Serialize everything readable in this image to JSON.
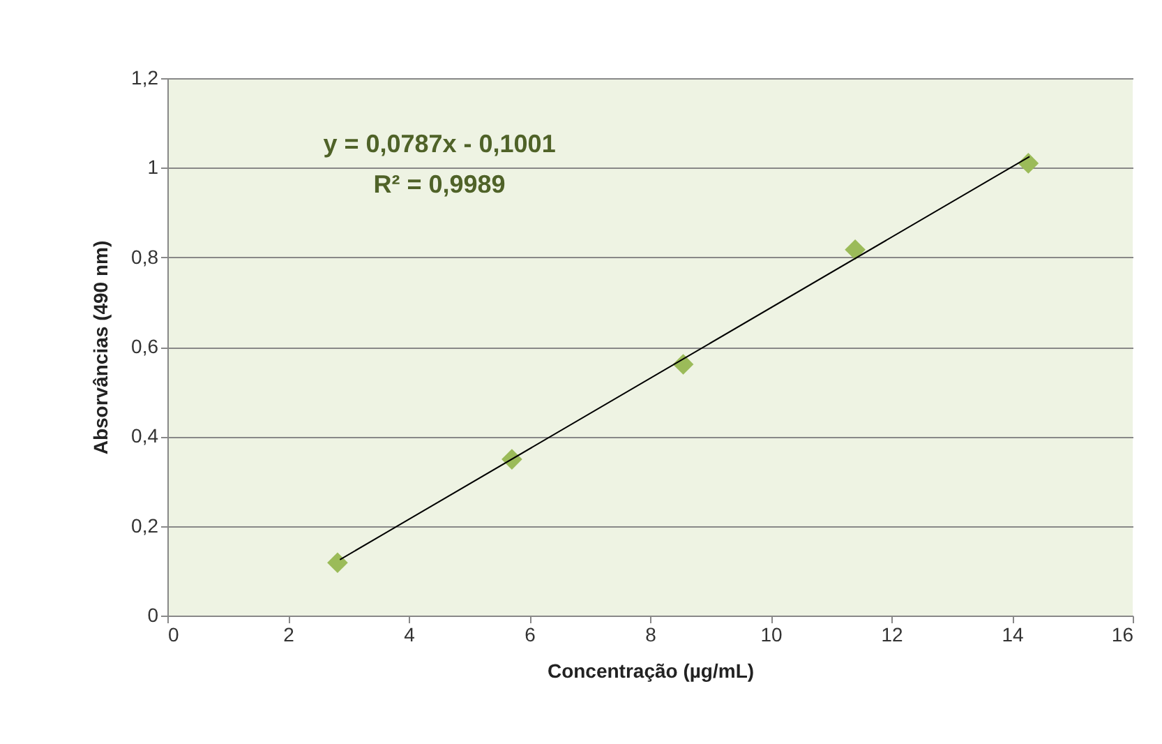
{
  "chart_data": {
    "type": "scatter",
    "xlabel": "Concentração (µg/mL)",
    "ylabel": "Absorvâncias (490 nm)",
    "annotations": [
      "y = 0,0787x - 0,1001",
      "R² = 0,9989"
    ],
    "xlim": [
      0,
      16
    ],
    "xticks": [
      0,
      2,
      4,
      6,
      8,
      10,
      12,
      14,
      16
    ],
    "ylim": [
      0,
      1.2
    ],
    "yticks": [
      0,
      {
        "value": 0.2,
        "label": "0,2"
      },
      {
        "value": 0.4,
        "label": "0,4"
      },
      {
        "value": 0.6,
        "label": "0,6"
      },
      {
        "value": 0.8,
        "label": "0,8"
      },
      1,
      {
        "value": 1.2,
        "label": "1,2"
      }
    ],
    "grid": "y",
    "marker": "diamond",
    "series": [
      {
        "color": "#9bbb59",
        "x": [
          2.82,
          5.71,
          8.55,
          11.4,
          14.27
        ],
        "values": [
          0.118,
          0.349,
          0.561,
          0.817,
          1.01
        ]
      },
      {
        "type": "line",
        "color": "#000000",
        "line_style": "solid",
        "marker": "none",
        "x": [
          2.86,
          14.29
        ],
        "values": [
          0.125,
          1.025
        ]
      }
    ]
  }
}
